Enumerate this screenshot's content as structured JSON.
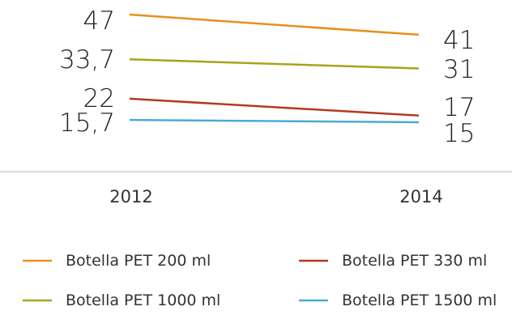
{
  "chart_data": {
    "type": "line",
    "title": "",
    "xlabel": "",
    "ylabel": "",
    "categories": [
      "2012",
      "2014"
    ],
    "series": [
      {
        "name": "Botella PET 200 ml",
        "values": [
          47,
          41
        ],
        "labels": [
          "47",
          "41"
        ],
        "color": "#E8901A"
      },
      {
        "name": "Botella PET 330 ml",
        "values": [
          22,
          17
        ],
        "labels": [
          "22",
          "17"
        ],
        "color": "#B23A1E"
      },
      {
        "name": "Botella PET 1000 ml",
        "values": [
          33.7,
          31
        ],
        "labels": [
          "33,7",
          "31"
        ],
        "color": "#A5A51A"
      },
      {
        "name": "Botella PET 1500 ml",
        "values": [
          15.7,
          15
        ],
        "labels": [
          "15,7",
          "15"
        ],
        "color": "#4AAAD8"
      }
    ],
    "ylim": [
      15,
      48
    ],
    "grid": false,
    "legend": "bottom"
  }
}
